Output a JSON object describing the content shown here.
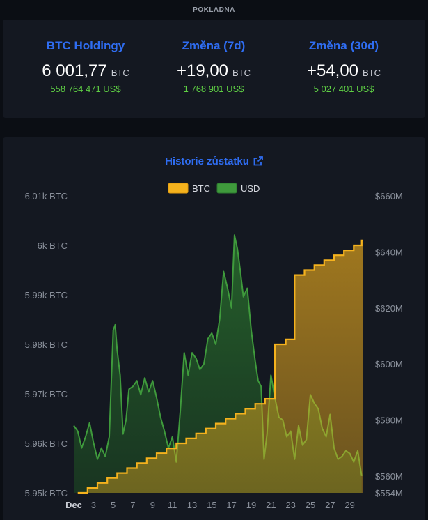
{
  "page_label": "POKLADNA",
  "stats": [
    {
      "label": "BTC Holdingy",
      "value": "6 001,77",
      "unit": "BTC",
      "usd": "558 764 471 US$"
    },
    {
      "label": "Změna (7d)",
      "value": "+19,00",
      "unit": "BTC",
      "usd": "1 768 901 US$"
    },
    {
      "label": "Změna (30d)",
      "value": "+54,00",
      "unit": "BTC",
      "usd": "5 027 401 US$"
    }
  ],
  "colors": {
    "btc": "#f5b21d",
    "usd": "#3f9a3c",
    "accent": "#2f6df2",
    "positive": "#5fd044"
  },
  "chart_data": {
    "type": "area",
    "title": "Historie zůstatku",
    "title_icon": "external-link-icon",
    "legend": {
      "placement": "top-center",
      "entries": [
        "BTC",
        "USD"
      ]
    },
    "grid": false,
    "x_ticks": [
      "Dec",
      "3",
      "5",
      "7",
      "9",
      "11",
      "13",
      "15",
      "17",
      "19",
      "21",
      "23",
      "25",
      "27",
      "29"
    ],
    "x_tick_days": [
      1,
      3,
      5,
      7,
      9,
      11,
      13,
      15,
      17,
      19,
      21,
      23,
      25,
      27,
      29
    ],
    "xlim": [
      1,
      31
    ],
    "y_left": {
      "ticks": [
        "6.01k BTC",
        "6k BTC",
        "5.99k BTC",
        "5.98k BTC",
        "5.97k BTC",
        "5.96k BTC",
        "5.95k BTC"
      ],
      "tick_values": [
        6010,
        6000,
        5990,
        5980,
        5970,
        5960,
        5950
      ],
      "ylim": [
        5950,
        6010
      ]
    },
    "y_right": {
      "ticks": [
        "$660M",
        "$640M",
        "$620M",
        "$600M",
        "$580M",
        "$560M",
        "$554M"
      ],
      "tick_values": [
        660,
        640,
        620,
        600,
        580,
        560,
        554
      ],
      "ylim": [
        554,
        660
      ]
    },
    "series": [
      {
        "name": "BTC",
        "axis": "left",
        "step": true,
        "x": [
          1.4,
          2.4,
          3.4,
          4.4,
          5.4,
          6.4,
          7.4,
          8.4,
          9.4,
          10.4,
          11.4,
          12.4,
          13.4,
          14.4,
          15.4,
          16.4,
          17.4,
          18.4,
          19.4,
          20.4,
          21.4,
          22.5,
          23.4,
          24.4,
          25.4,
          26.4,
          27.4,
          28.4,
          29.4,
          30.2
        ],
        "values": [
          5950,
          5951,
          5952,
          5953,
          5954,
          5955,
          5956,
          5957,
          5958,
          5959,
          5960,
          5961,
          5962,
          5963,
          5964,
          5965,
          5966,
          5967,
          5968,
          5969,
          5980,
          5981,
          5994,
          5995,
          5996,
          5997,
          5998,
          5999,
          6000,
          6001
        ]
      },
      {
        "name": "USD",
        "axis": "right",
        "x": [
          1,
          1.4,
          1.8,
          2.2,
          2.6,
          3,
          3.4,
          3.8,
          4.2,
          4.6,
          5,
          5.2,
          5.4,
          5.7,
          6,
          6.3,
          6.6,
          7,
          7.4,
          7.8,
          8.2,
          8.6,
          9,
          9.4,
          9.8,
          10.2,
          10.6,
          11,
          11.4,
          11.8,
          12.2,
          12.6,
          13,
          13.4,
          13.8,
          14.2,
          14.6,
          15,
          15.4,
          15.8,
          16.2,
          16.6,
          17,
          17.3,
          17.6,
          17.9,
          18.2,
          18.6,
          19,
          19.4,
          19.7,
          20,
          20.3,
          20.6,
          21,
          21.4,
          21.8,
          22.2,
          22.6,
          23,
          23.4,
          23.8,
          24.2,
          24.6,
          25,
          25.4,
          25.8,
          26.2,
          26.6,
          27,
          27.4,
          27.8,
          28.2,
          28.6,
          29,
          29.4,
          29.8,
          30.2
        ],
        "values": [
          578,
          576,
          570,
          574,
          579,
          572,
          566,
          570,
          567,
          574,
          612,
          614,
          605,
          596,
          575,
          580,
          591,
          592,
          594,
          589,
          595,
          590,
          594,
          588,
          581,
          576,
          570,
          574,
          565,
          583,
          604,
          596,
          604,
          602,
          598,
          600,
          609,
          611,
          607,
          616,
          633,
          627,
          620,
          646,
          641,
          633,
          624,
          627,
          612,
          601,
          594,
          592,
          566,
          575,
          596,
          588,
          581,
          580,
          574,
          576,
          566,
          578,
          571,
          573,
          589,
          586,
          584,
          577,
          574,
          582,
          570,
          566,
          567,
          569,
          568,
          565,
          569,
          560
        ]
      }
    ]
  }
}
